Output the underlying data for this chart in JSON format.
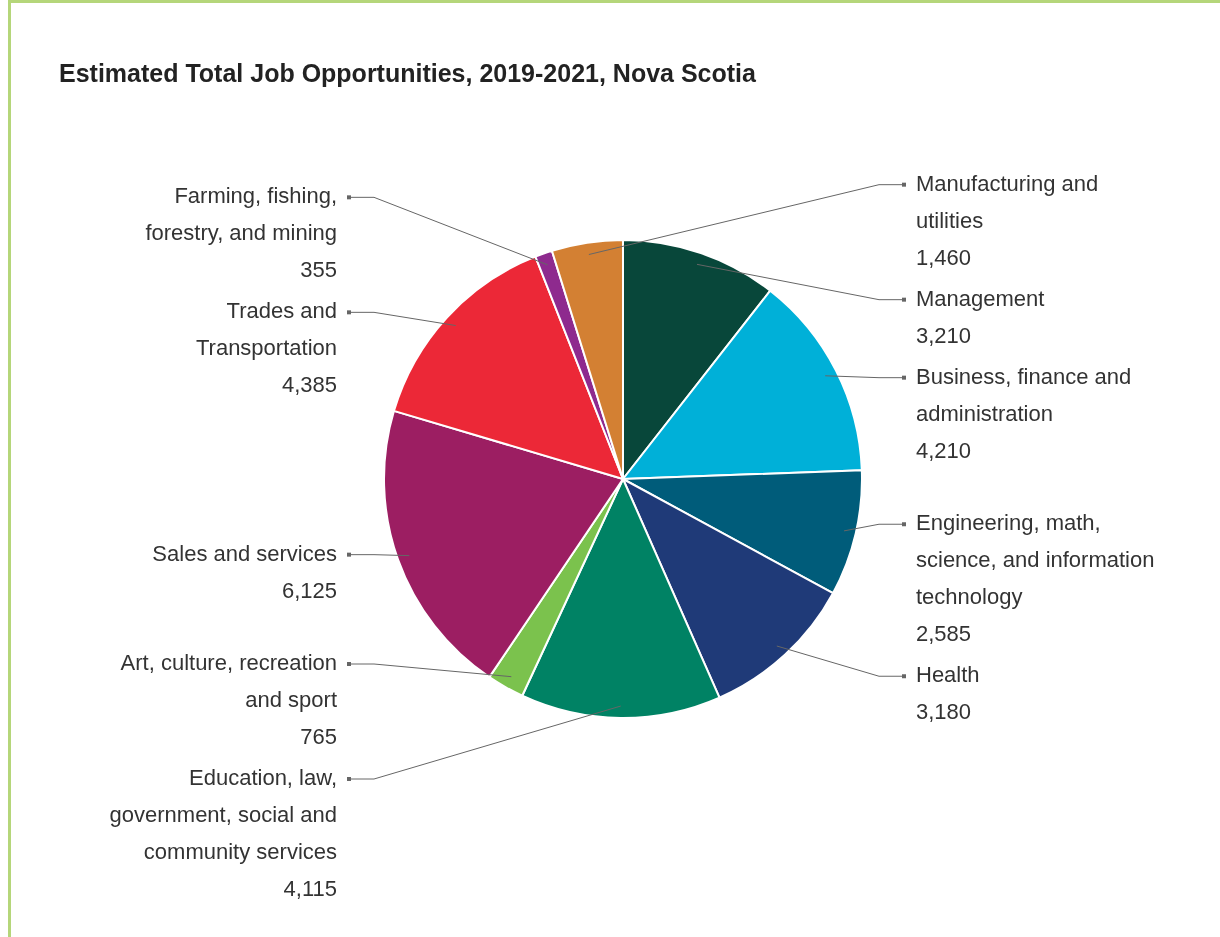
{
  "chart_data": {
    "type": "pie",
    "title": "Estimated Total Job Opportunities, 2019-2021, Nova Scotia",
    "categories": [
      "Management",
      "Business, finance and administration",
      "Engineering, math, science, and information technology",
      "Health",
      "Education, law, government, social and community services",
      "Art, culture, recreation and sport",
      "Sales and services",
      "Trades and Transportation",
      "Farming, fishing, forestry, and mining",
      "Manufacturing and utilities"
    ],
    "values": [
      3210,
      4210,
      2585,
      3180,
      4115,
      765,
      6125,
      4385,
      355,
      1460
    ],
    "colors": [
      "#08473a",
      "#00b0d8",
      "#005c7a",
      "#1f3a78",
      "#008264",
      "#7bc24d",
      "#9c1e62",
      "#ec2837",
      "#8e2a8e",
      "#d38033"
    ],
    "value_labels": [
      "3,210",
      "4,210",
      "2,585",
      "3,180",
      "4,115",
      "765",
      "6,125",
      "4,385",
      "355",
      "1,460"
    ],
    "legend": false
  }
}
